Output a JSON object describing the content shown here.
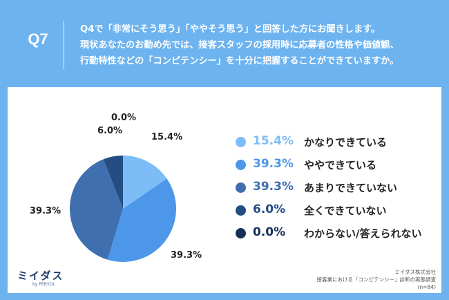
{
  "header": {
    "question_label": "Q7",
    "question_lines": [
      "Q4で「非常にそう思う」「ややそう思う」と回答した方にお聞きします。",
      "現状あなたのお勤め先では、接客スタッフの採用時に応募者の性格や価値観、",
      "行動特性などの「コンピテンシー」を十分に把握することができていますか。"
    ]
  },
  "chart_data": {
    "type": "pie",
    "title": "",
    "start_angle": "top, clockwise",
    "slices": [
      {
        "label": "かなりできている",
        "value": 15.4,
        "display": "15.4%",
        "color": "#7dbdf7"
      },
      {
        "label": "ややできている",
        "value": 39.3,
        "display": "39.3%",
        "color": "#4d97ea"
      },
      {
        "label": "あまりできていない",
        "value": 39.3,
        "display": "39.3%",
        "color": "#3f6fae"
      },
      {
        "label": "全くできていない",
        "value": 6.0,
        "display": "6.0%",
        "color": "#244d82"
      },
      {
        "label": "わからない/答えられない",
        "value": 0.0,
        "display": "0.0%",
        "color": "#162f57"
      }
    ]
  },
  "logo": {
    "main": "ミイダス",
    "sub": "by PERSOL"
  },
  "source": {
    "lines": [
      "ミイダス株式会社",
      "接客業における「コンピテンシー」診断の実態調査",
      "(n=84)"
    ]
  }
}
